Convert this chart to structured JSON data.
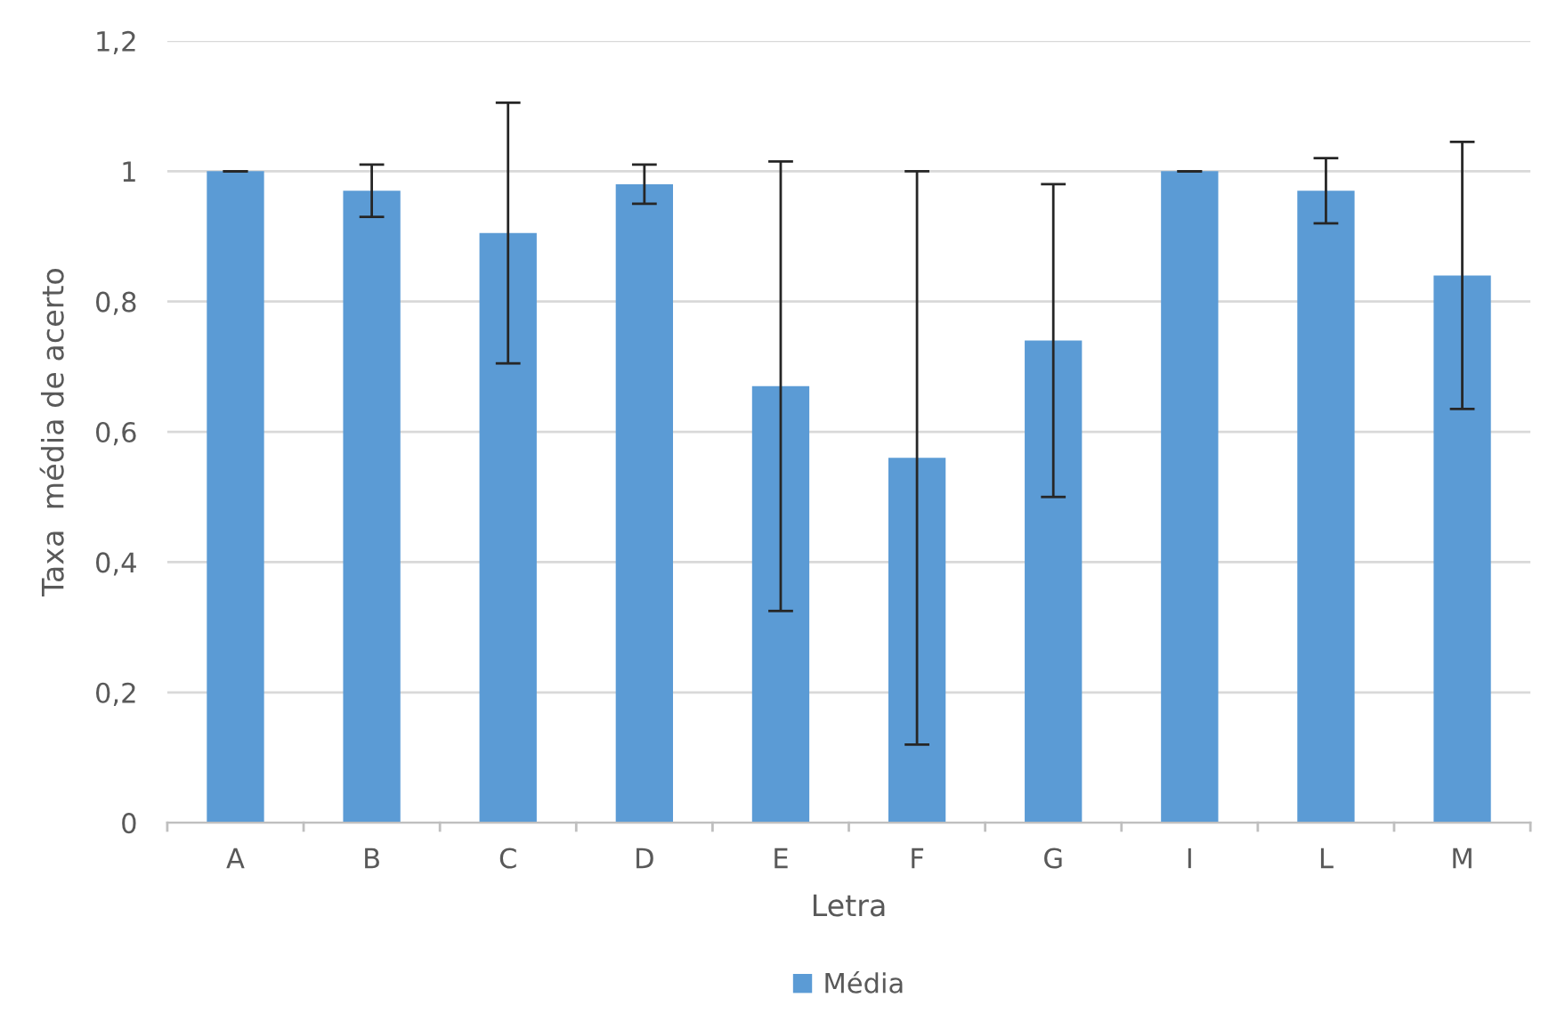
{
  "chart_data": {
    "type": "bar",
    "xlabel": "Letra",
    "ylabel": "Taxa  média de acerto",
    "categories": [
      "A",
      "B",
      "C",
      "D",
      "E",
      "F",
      "G",
      "I",
      "L",
      "M"
    ],
    "series": [
      {
        "name": "Média",
        "color": "#5b9bd5",
        "values": [
          1.0,
          0.97,
          0.905,
          0.98,
          0.67,
          0.56,
          0.74,
          1.0,
          0.97,
          0.84
        ],
        "errors": [
          0,
          0.04,
          0.2,
          0.03,
          0.345,
          0.44,
          0.24,
          0,
          0.05,
          0.205
        ]
      }
    ],
    "ylim": [
      0,
      1.2
    ],
    "yticks": [
      0,
      {
        "value": 0.2,
        "label": "0,2"
      },
      {
        "value": 0.4,
        "label": "0,4"
      },
      {
        "value": 0.6,
        "label": "0,6"
      },
      {
        "value": 0.8,
        "label": "0,8"
      },
      1,
      {
        "value": 1.2,
        "label": "1,2"
      }
    ],
    "grid": "y",
    "legend": "bottom"
  }
}
